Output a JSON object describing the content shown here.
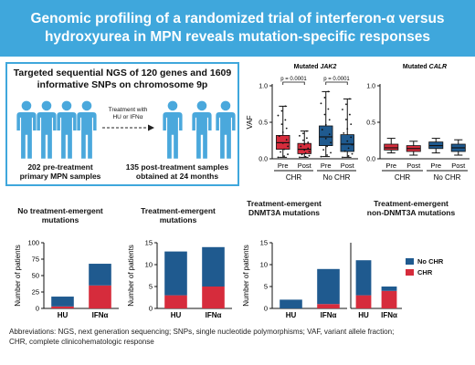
{
  "title_line1": "Genomic profiling of a randomized trial of interferon-α versus",
  "title_line2": "hydroxyurea in MPN reveals mutation-specific responses",
  "ngs": {
    "heading_line1": "Targeted sequential NGS of 120 genes and 1609",
    "heading_line2": "informative SNPs on chromosome 9p",
    "arrow_label_line1": "Treatment with",
    "arrow_label_line2": "HU or IFNα",
    "pre_caption_line1": "202 pre-treatment",
    "pre_caption_line2": "primary MPN samples",
    "post_caption_line1": "135 post-treatment samples",
    "post_caption_line2": "obtained at 24 months"
  },
  "colors": {
    "banner": "#3fa7dc",
    "chr": "#d62c3c",
    "no_chr": "#1f5a8f",
    "person": "#4aa8dc"
  },
  "chart_data": [
    {
      "type": "box",
      "title_prefix": "Mutated ",
      "title_gene": "JAK2",
      "ylabel": "VAF",
      "ylim": [
        0,
        1.0
      ],
      "yticks": [
        "0.0",
        "0.5",
        "1.0"
      ],
      "categories": [
        "Pre",
        "Post",
        "Pre",
        "Post"
      ],
      "groups": [
        "CHR",
        "No CHR"
      ],
      "annotations": [
        "p = 0.0001",
        "p = 0.0001"
      ],
      "boxes": [
        {
          "group": "CHR",
          "timepoint": "Pre",
          "min": 0.02,
          "q1": 0.13,
          "median": 0.22,
          "q3": 0.32,
          "max": 0.72
        },
        {
          "group": "CHR",
          "timepoint": "Post",
          "min": 0.02,
          "q1": 0.07,
          "median": 0.13,
          "q3": 0.21,
          "max": 0.38
        },
        {
          "group": "No CHR",
          "timepoint": "Pre",
          "min": 0.03,
          "q1": 0.18,
          "median": 0.3,
          "q3": 0.45,
          "max": 0.92
        },
        {
          "group": "No CHR",
          "timepoint": "Post",
          "min": 0.02,
          "q1": 0.1,
          "median": 0.2,
          "q3": 0.33,
          "max": 0.82
        }
      ]
    },
    {
      "type": "box",
      "title_prefix": "Mutated ",
      "title_gene": "CALR",
      "ylabel": "",
      "ylim": [
        0,
        1.0
      ],
      "yticks": [
        "0.0",
        "0.5",
        "1.0"
      ],
      "categories": [
        "Pre",
        "Post",
        "Pre",
        "Post"
      ],
      "groups": [
        "CHR",
        "No CHR"
      ],
      "boxes": [
        {
          "group": "CHR",
          "timepoint": "Pre",
          "min": 0.08,
          "q1": 0.12,
          "median": 0.15,
          "q3": 0.2,
          "max": 0.28
        },
        {
          "group": "CHR",
          "timepoint": "Post",
          "min": 0.05,
          "q1": 0.1,
          "median": 0.14,
          "q3": 0.18,
          "max": 0.24
        },
        {
          "group": "No CHR",
          "timepoint": "Pre",
          "min": 0.08,
          "q1": 0.14,
          "median": 0.18,
          "q3": 0.23,
          "max": 0.28
        },
        {
          "group": "No CHR",
          "timepoint": "Post",
          "min": 0.05,
          "q1": 0.1,
          "median": 0.15,
          "q3": 0.2,
          "max": 0.26
        }
      ]
    },
    {
      "type": "bar",
      "stacked": true,
      "title_line1": "No treatment-emergent",
      "title_line2": "mutations",
      "ylabel": "Number of patients",
      "ylim": [
        0,
        100
      ],
      "yticks": [
        "0",
        "25",
        "50",
        "75",
        "100"
      ],
      "categories": [
        "HU",
        "IFNα"
      ],
      "series": [
        {
          "name": "CHR",
          "values": [
            3,
            35
          ]
        },
        {
          "name": "No CHR",
          "values": [
            15,
            33
          ]
        }
      ]
    },
    {
      "type": "bar",
      "stacked": true,
      "title_line1": "Treatment-emergent",
      "title_line2": "mutations",
      "ylabel": "Number of patients",
      "ylim": [
        0,
        15
      ],
      "yticks": [
        "0",
        "5",
        "10",
        "15"
      ],
      "categories": [
        "HU",
        "IFNα"
      ],
      "series": [
        {
          "name": "CHR",
          "values": [
            3,
            5
          ]
        },
        {
          "name": "No CHR",
          "values": [
            10,
            9
          ]
        }
      ]
    },
    {
      "type": "bar",
      "stacked": true,
      "title_line1": "Treatment-emergent",
      "title_line2": "DNMT3A mutations",
      "ylabel": "Number of patients",
      "ylim": [
        0,
        15
      ],
      "yticks": [
        "0",
        "5",
        "10",
        "15"
      ],
      "categories": [
        "HU",
        "IFNα"
      ],
      "series": [
        {
          "name": "CHR",
          "values": [
            0,
            1
          ]
        },
        {
          "name": "No CHR",
          "values": [
            2,
            8
          ]
        }
      ]
    },
    {
      "type": "bar",
      "stacked": true,
      "title_line1": "Treatment-emergent",
      "title_line2": "non-DNMT3A mutations",
      "ylabel": "Number of patients",
      "ylim": [
        0,
        15
      ],
      "yticks": [
        "0",
        "5",
        "10",
        "15"
      ],
      "categories": [
        "HU",
        "IFNα"
      ],
      "series": [
        {
          "name": "CHR",
          "values": [
            3,
            4
          ]
        },
        {
          "name": "No CHR",
          "values": [
            8,
            1
          ]
        }
      ]
    }
  ],
  "legend": {
    "no_chr": "No CHR",
    "chr": "CHR"
  },
  "abbreviations_line1": "Abbreviations: NGS, next generation sequencing; SNPs, single nucleotide polymorphisms; VAF, variant allele fraction;",
  "abbreviations_line2": "CHR, complete clinicohematologic response"
}
